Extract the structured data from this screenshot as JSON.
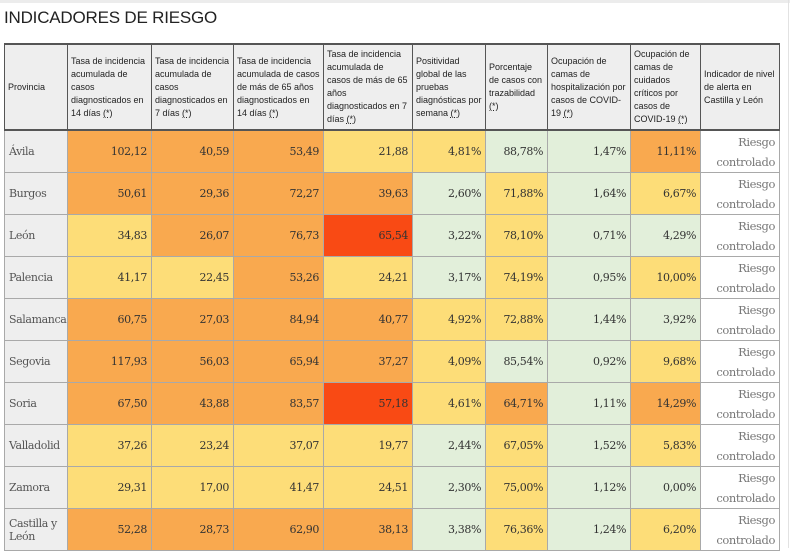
{
  "title": "INDICADORES DE RIESGO",
  "colors": {
    "O": "#f9a94f",
    "Y": "#fddd78",
    "G": "#e2efda",
    "R": "#f94a14"
  },
  "headers": [
    {
      "text": "Provincia",
      "ast": ""
    },
    {
      "text": "Tasa de incidencia acumulada de casos diagnosticados en 14 días ",
      "ast": "(*)"
    },
    {
      "text": "Tasa de incidencia acumulada de casos diagnosticados en 7 días ",
      "ast": "(*)"
    },
    {
      "text": "Tasa de incidencia acumulada de casos de más de 65 años diagnosticados en 14 días ",
      "ast": "(*)"
    },
    {
      "text": "Tasa de incidencia acumulada de casos de más de 65 años diagnosticados en 7 días ",
      "ast": "(*)"
    },
    {
      "text": "Positividad global de las pruebas diagnósticas por semana ",
      "ast": "(*)"
    },
    {
      "text": "Porcentaje de casos con trazabilidad ",
      "ast": "(*)"
    },
    {
      "text": "Ocupación de camas de hospitalización por casos de COVID-19 ",
      "ast": "(*)"
    },
    {
      "text": "Ocupación de camas de cuidados críticos por casos de COVID-19 ",
      "ast": "(*)"
    },
    {
      "text": "Indicador de nivel de alerta en Castilla y León",
      "ast": ""
    }
  ],
  "rows": [
    {
      "prov": "Ávila",
      "values": [
        "102,12",
        "40,59",
        "53,49",
        "21,88",
        "4,81%",
        "88,78%",
        "1,47%",
        "11,11%"
      ],
      "levels": [
        "O",
        "O",
        "O",
        "Y",
        "Y",
        "G",
        "G",
        "O"
      ],
      "alert": "Riesgo controlado"
    },
    {
      "prov": "Burgos",
      "values": [
        "50,61",
        "29,36",
        "72,27",
        "39,63",
        "2,60%",
        "71,88%",
        "1,64%",
        "6,67%"
      ],
      "levels": [
        "O",
        "O",
        "O",
        "O",
        "G",
        "Y",
        "G",
        "Y"
      ],
      "alert": "Riesgo controlado"
    },
    {
      "prov": "León",
      "values": [
        "34,83",
        "26,07",
        "76,73",
        "65,54",
        "3,22%",
        "78,10%",
        "0,71%",
        "4,29%"
      ],
      "levels": [
        "Y",
        "O",
        "O",
        "R",
        "G",
        "Y",
        "G",
        "G"
      ],
      "alert": "Riesgo controlado"
    },
    {
      "prov": "Palencia",
      "values": [
        "41,17",
        "22,45",
        "53,26",
        "24,21",
        "3,17%",
        "74,19%",
        "0,95%",
        "10,00%"
      ],
      "levels": [
        "Y",
        "Y",
        "O",
        "Y",
        "G",
        "Y",
        "G",
        "Y"
      ],
      "alert": "Riesgo controlado"
    },
    {
      "prov": "Salamanca",
      "values": [
        "60,75",
        "27,03",
        "84,94",
        "40,77",
        "4,92%",
        "72,88%",
        "1,44%",
        "3,92%"
      ],
      "levels": [
        "O",
        "O",
        "O",
        "O",
        "Y",
        "Y",
        "G",
        "G"
      ],
      "alert": "Riesgo controlado"
    },
    {
      "prov": "Segovia",
      "values": [
        "117,93",
        "56,03",
        "65,94",
        "37,27",
        "4,09%",
        "85,54%",
        "0,92%",
        "9,68%"
      ],
      "levels": [
        "O",
        "O",
        "O",
        "O",
        "Y",
        "G",
        "G",
        "Y"
      ],
      "alert": "Riesgo controlado"
    },
    {
      "prov": "Soria",
      "values": [
        "67,50",
        "43,88",
        "83,57",
        "57,18",
        "4,61%",
        "64,71%",
        "1,11%",
        "14,29%"
      ],
      "levels": [
        "O",
        "O",
        "O",
        "R",
        "Y",
        "O",
        "G",
        "O"
      ],
      "alert": "Riesgo controlado"
    },
    {
      "prov": "Valladolid",
      "values": [
        "37,26",
        "23,24",
        "37,07",
        "19,77",
        "2,44%",
        "67,05%",
        "1,52%",
        "5,83%"
      ],
      "levels": [
        "Y",
        "Y",
        "Y",
        "Y",
        "G",
        "Y",
        "G",
        "Y"
      ],
      "alert": "Riesgo controlado"
    },
    {
      "prov": "Zamora",
      "values": [
        "29,31",
        "17,00",
        "41,47",
        "24,51",
        "2,30%",
        "75,00%",
        "1,12%",
        "0,00%"
      ],
      "levels": [
        "Y",
        "Y",
        "Y",
        "Y",
        "G",
        "Y",
        "G",
        "G"
      ],
      "alert": "Riesgo controlado"
    },
    {
      "prov": "Castilla y León",
      "values": [
        "52,28",
        "28,73",
        "62,90",
        "38,13",
        "3,38%",
        "76,36%",
        "1,24%",
        "6,20%"
      ],
      "levels": [
        "O",
        "O",
        "O",
        "O",
        "G",
        "Y",
        "G",
        "Y"
      ],
      "alert": "Riesgo controlado"
    }
  ]
}
